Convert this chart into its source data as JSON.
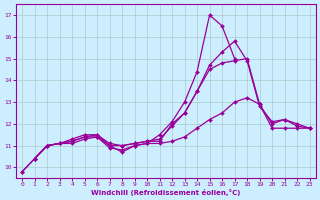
{
  "xlabel": "Windchill (Refroidissement éolien,°C)",
  "bg_color": "#cceeff",
  "grid_color": "#aacccc",
  "line_color": "#990099",
  "xlim": [
    -0.5,
    23.5
  ],
  "ylim": [
    9.5,
    17.5
  ],
  "yticks": [
    10,
    11,
    12,
    13,
    14,
    15,
    16,
    17
  ],
  "xticks": [
    0,
    1,
    2,
    3,
    4,
    5,
    6,
    7,
    8,
    9,
    10,
    11,
    12,
    13,
    14,
    15,
    16,
    17,
    18,
    19,
    20,
    21,
    22,
    23
  ],
  "lines": [
    {
      "comment": "sharp peak line - goes high to ~17 at x=15-16, back down",
      "x": [
        0,
        1,
        2,
        3,
        4,
        5,
        6,
        7,
        8,
        9,
        10,
        11,
        12,
        13,
        14,
        15,
        16,
        17,
        18
      ],
      "y": [
        9.8,
        10.4,
        11.0,
        11.1,
        11.3,
        11.5,
        11.5,
        11.0,
        10.7,
        11.0,
        11.1,
        11.5,
        12.1,
        13.0,
        14.4,
        17.0,
        16.5,
        15.0,
        null
      ]
    },
    {
      "comment": "broad diagonal line - goes to ~15 at x=18, slight drop",
      "x": [
        0,
        1,
        2,
        3,
        4,
        5,
        6,
        7,
        8,
        9,
        10,
        11,
        12,
        13,
        14,
        15,
        16,
        17,
        18,
        19,
        20,
        21,
        22,
        23
      ],
      "y": [
        9.8,
        10.4,
        11.0,
        11.1,
        11.2,
        11.4,
        11.4,
        11.0,
        11.0,
        11.1,
        11.2,
        11.3,
        11.9,
        12.5,
        13.5,
        14.5,
        14.8,
        14.9,
        15.0,
        12.9,
        12.0,
        12.2,
        12.0,
        11.8
      ]
    },
    {
      "comment": "upper middle - rises to ~13 at x=19",
      "x": [
        1,
        2,
        3,
        4,
        5,
        6,
        7,
        8,
        9,
        10,
        11,
        12,
        13,
        14,
        15,
        16,
        17,
        18,
        19,
        20,
        21,
        22,
        23
      ],
      "y": [
        10.4,
        11.0,
        11.1,
        11.2,
        11.4,
        11.5,
        11.1,
        11.0,
        11.1,
        11.2,
        11.2,
        12.0,
        12.5,
        13.5,
        14.7,
        15.3,
        15.8,
        14.9,
        12.8,
        12.1,
        12.2,
        11.9,
        11.8
      ]
    },
    {
      "comment": "flat bottom line - very gradual rise",
      "x": [
        1,
        2,
        3,
        4,
        5,
        6,
        7,
        8,
        9,
        10,
        11,
        12,
        13,
        14,
        15,
        16,
        17,
        18,
        19,
        20,
        21,
        22,
        23
      ],
      "y": [
        10.4,
        11.0,
        11.1,
        11.1,
        11.3,
        11.4,
        10.9,
        10.8,
        11.0,
        11.1,
        11.1,
        11.2,
        11.4,
        11.8,
        12.2,
        12.5,
        13.0,
        13.2,
        12.9,
        11.8,
        11.8,
        11.8,
        11.8
      ]
    }
  ]
}
